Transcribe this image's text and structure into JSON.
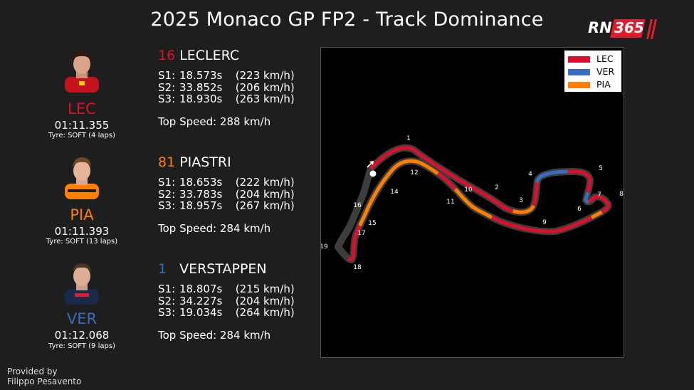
{
  "title": "2025 Monaco GP FP2 - Track Dominance",
  "logo": {
    "text": "RN",
    "number": "365"
  },
  "colors": {
    "LEC": "#dc0f2c",
    "PIA": "#ff8000",
    "VER": "#3a6cc0",
    "track_base": "#3d3d3d"
  },
  "drivers": [
    {
      "code": "LEC",
      "time": "01:11.355",
      "tyre": "Tyre: SOFT (4 laps)",
      "number": "16",
      "name": "LECLERC",
      "s1_label": "S1:",
      "s1": "18.573s",
      "s1_speed": "(223 km/h)",
      "s2_label": "S2:",
      "s2": "33.852s",
      "s2_speed": "(206 km/h)",
      "s3_label": "S3:",
      "s3": "18.930s",
      "s3_speed": "(263 km/h)",
      "top_speed": "Top Speed: 288 km/h"
    },
    {
      "code": "PIA",
      "time": "01:11.393",
      "tyre": "Tyre: SOFT (13 laps)",
      "number": "81",
      "name": "PIASTRI",
      "s1_label": "S1:",
      "s1": "18.653s",
      "s1_speed": "(222 km/h)",
      "s2_label": "S2:",
      "s2": "33.783s",
      "s2_speed": "(204 km/h)",
      "s3_label": "S3:",
      "s3": "18.957s",
      "s3_speed": "(267 km/h)",
      "top_speed": "Top Speed: 284 km/h"
    },
    {
      "code": "VER",
      "time": "01:12.068",
      "tyre": "Tyre: SOFT (9 laps)",
      "number": "1",
      "name": "VERSTAPPEN",
      "s1_label": "S1:",
      "s1": "18.807s",
      "s1_speed": "(215 km/h)",
      "s2_label": "S2:",
      "s2": "34.227s",
      "s2_speed": "(204 km/h)",
      "s3_label": "S3:",
      "s3": "19.034s",
      "s3_speed": "(264 km/h)",
      "top_speed": "Top Speed: 284 km/h"
    }
  ],
  "chart_data": {
    "type": "track-map",
    "legend": [
      {
        "label": "LEC",
        "color": "#dc0f2c"
      },
      {
        "label": "VER",
        "color": "#3a6cc0"
      },
      {
        "label": "PIA",
        "color": "#ff8000"
      }
    ],
    "legend_position": "top-right",
    "corners": [
      "1",
      "2",
      "3",
      "4",
      "5",
      "6",
      "7",
      "8",
      "9",
      "10",
      "11",
      "12",
      "14",
      "15",
      "16",
      "17",
      "18",
      "19"
    ],
    "segment_fastest": [
      "LEC",
      "PIA",
      "LEC",
      "VER",
      "LEC",
      "VER",
      "LEC",
      "PIA",
      "LEC",
      "PIA",
      "LEC",
      "PIA",
      "LEC"
    ]
  },
  "credit": {
    "line1": "Provided by",
    "line2": "Filippo Pesavento"
  }
}
